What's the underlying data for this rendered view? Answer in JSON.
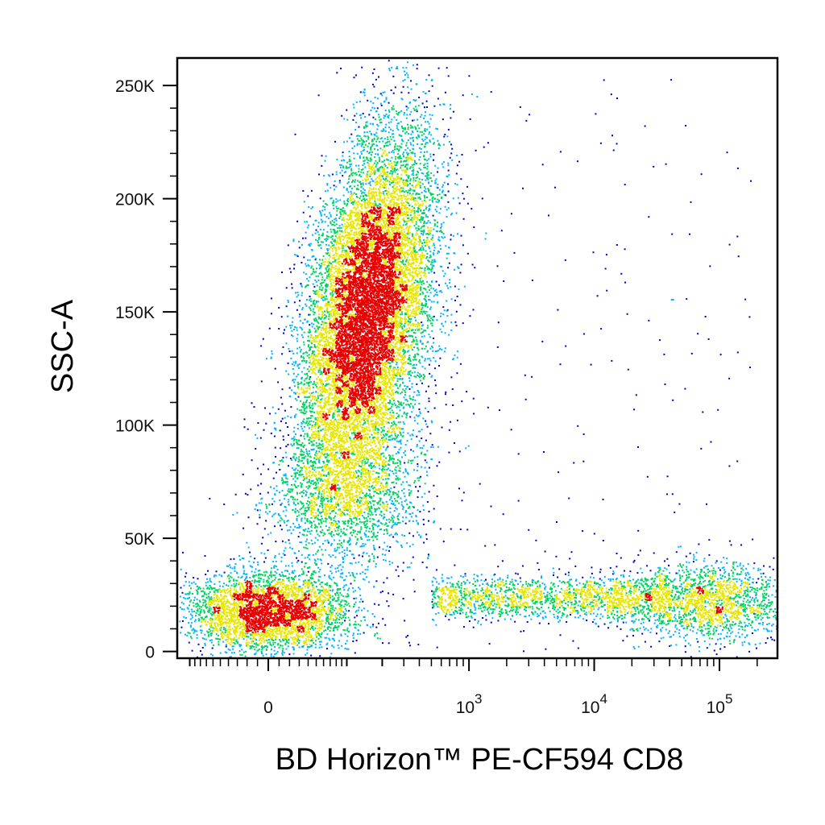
{
  "chart_data": {
    "type": "scatter",
    "style": "density dot plot (flow cytometry), colored blue to green to yellow to red by local event density",
    "xlabel": "BD Horizon™ PE-CF594 CD8",
    "ylabel": "SSC-A",
    "title": "",
    "x_scale": "biexponential (linear near 0, log above ~10^2.5)",
    "xlim": [
      -300,
      200000
    ],
    "ylim": [
      -3000,
      262144
    ],
    "y_ticks": [
      {
        "value": 0,
        "label": "0"
      },
      {
        "value": 50000,
        "label": "50K"
      },
      {
        "value": 100000,
        "label": "100K"
      },
      {
        "value": 150000,
        "label": "150K"
      },
      {
        "value": 200000,
        "label": "200K"
      },
      {
        "value": 250000,
        "label": "250K"
      }
    ],
    "x_ticks": [
      {
        "value": 0,
        "label": "0",
        "exp": ""
      },
      {
        "value": 1000,
        "label": "10",
        "exp": "3"
      },
      {
        "value": 10000,
        "label": "10",
        "exp": "4"
      },
      {
        "value": 100000,
        "label": "10",
        "exp": "5"
      }
    ],
    "grid": false,
    "legend": "none",
    "colors": {
      "low_density": "#0000c8",
      "mid_low": "#00b4ff",
      "mid": "#00d264",
      "mid_high": "#e6e600",
      "high_density": "#e60000"
    },
    "populations": [
      {
        "description": "CD8-negative events, low SSC",
        "x_center": 0,
        "y_center": 18000,
        "y_range": [
          5000,
          40000
        ],
        "relative_count": 0.17
      },
      {
        "description": "CD8-negative events, high SSC",
        "x_center": 150,
        "y_center": 150000,
        "y_range": [
          95000,
          255000
        ],
        "relative_count": 0.58
      },
      {
        "description": "events between the two CD8-negative groups",
        "x_center": 100,
        "y_center": 70000,
        "y_range": [
          35000,
          100000
        ],
        "relative_count": 0.08
      },
      {
        "description": "horizontal band of low-SSC events across CD8 intensities",
        "x_range": [
          500,
          40000
        ],
        "y_center": 24000,
        "relative_count": 0.08
      },
      {
        "description": "CD8-positive events, low SSC",
        "x_center": 80000,
        "y_center": 22000,
        "y_range": [
          10000,
          45000
        ],
        "relative_count": 0.08
      },
      {
        "description": "sparse scattered events",
        "x_range": [
          300,
          180000
        ],
        "y_range": [
          0,
          255000
        ],
        "relative_count": 0.01
      }
    ]
  }
}
